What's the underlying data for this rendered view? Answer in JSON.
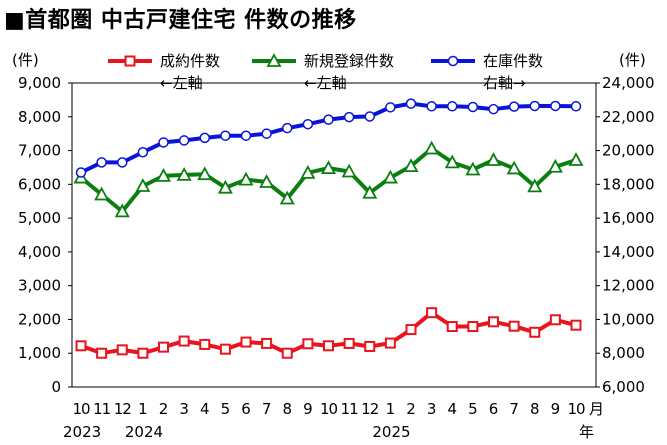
{
  "title": "■首都圏 中古戸建住宅 件数の推移",
  "left_unit": "(件)",
  "right_unit": "(件)",
  "legend": [
    {
      "name": "成約件数",
      "note": "←左軸",
      "color": "#e8141e",
      "marker": "square"
    },
    {
      "name": "新規登録件数",
      "note": "←左軸",
      "color": "#0a7f10",
      "marker": "triangle"
    },
    {
      "name": "在庫件数",
      "note": "右軸→",
      "color": "#0a14d8",
      "marker": "circle"
    }
  ],
  "chart_data": {
    "type": "line",
    "title": "■首都圏 中古戸建住宅 件数の推移",
    "x_tick_labels": [
      "10",
      "11",
      "12",
      "1",
      "2",
      "3",
      "4",
      "5",
      "6",
      "7",
      "8",
      "9",
      "10",
      "11",
      "12",
      "1",
      "2",
      "3",
      "4",
      "5",
      "6",
      "7",
      "8",
      "9",
      "10"
    ],
    "month_suffix": "月",
    "year_labels": [
      {
        "label": "2023",
        "at": 0
      },
      {
        "label": "2024",
        "at": 3
      },
      {
        "label": "2025",
        "at": 15
      }
    ],
    "year_suffix": "年",
    "left_axis": {
      "ylim": [
        0,
        9000
      ],
      "ticks": [
        "0",
        "1,000",
        "2,000",
        "3,000",
        "4,000",
        "5,000",
        "6,000",
        "7,000",
        "8,000",
        "9,000"
      ]
    },
    "right_axis": {
      "ylim": [
        6000,
        24000
      ],
      "ticks": [
        "6,000",
        "8,000",
        "10,000",
        "12,000",
        "14,000",
        "16,000",
        "18,000",
        "20,000",
        "22,000",
        "24,000"
      ]
    },
    "grid": false,
    "series": [
      {
        "name": "成約件数",
        "axis": "left",
        "color": "#e8141e",
        "marker": "square",
        "values": [
          1220,
          1000,
          1100,
          1000,
          1180,
          1360,
          1260,
          1120,
          1330,
          1290,
          1000,
          1280,
          1220,
          1290,
          1200,
          1300,
          1700,
          2200,
          1790,
          1790,
          1930,
          1800,
          1620,
          1990,
          1830
        ]
      },
      {
        "name": "新規登録件数",
        "axis": "left",
        "color": "#0a7f10",
        "marker": "triangle",
        "values": [
          6200,
          5700,
          5200,
          5950,
          6250,
          6280,
          6300,
          5900,
          6140,
          6070,
          5580,
          6340,
          6480,
          6380,
          5750,
          6200,
          6540,
          7060,
          6650,
          6440,
          6720,
          6470,
          5940,
          6520,
          6720
        ]
      },
      {
        "name": "在庫件数",
        "axis": "right",
        "color": "#0a14d8",
        "marker": "circle",
        "values": [
          18700,
          19300,
          19300,
          19900,
          20480,
          20600,
          20750,
          20880,
          20880,
          21000,
          21330,
          21560,
          21830,
          21980,
          22020,
          22560,
          22780,
          22620,
          22620,
          22580,
          22450,
          22600,
          22640,
          22640,
          22620
        ]
      }
    ]
  }
}
